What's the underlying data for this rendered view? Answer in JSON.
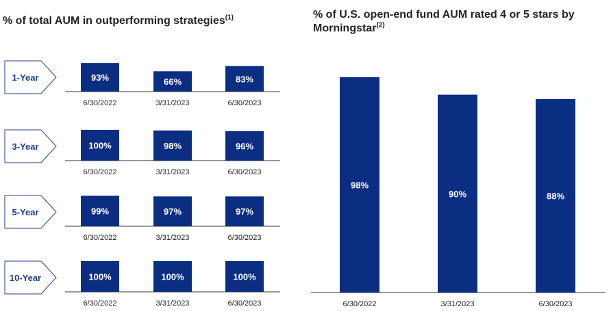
{
  "left_title": "% of total AUM in outperforming strategies",
  "left_title_note": "(1)",
  "right_title": "% of U.S. open-end fund AUM rated 4 or 5 stars by Morningstar",
  "right_title_note": "(2)",
  "colors": {
    "bar": "#0b2e83",
    "chevron_text": "#1f3e8a",
    "axis": "#333333"
  },
  "chart_data": [
    {
      "type": "bar",
      "title": "% of total AUM in outperforming strategies",
      "ylim": [
        0,
        100
      ],
      "panels": [
        {
          "period": "1-Year",
          "categories": [
            "6/30/2022",
            "3/31/2023",
            "6/30/2023"
          ],
          "values": [
            93,
            66,
            83
          ],
          "labels": [
            "93%",
            "66%",
            "83%"
          ]
        },
        {
          "period": "3-Year",
          "categories": [
            "6/30/2022",
            "3/31/2023",
            "6/30/2023"
          ],
          "values": [
            100,
            98,
            96
          ],
          "labels": [
            "100%",
            "98%",
            "96%"
          ]
        },
        {
          "period": "5-Year",
          "categories": [
            "6/30/2022",
            "3/31/2023",
            "6/30/2023"
          ],
          "values": [
            99,
            97,
            97
          ],
          "labels": [
            "99%",
            "97%",
            "97%"
          ]
        },
        {
          "period": "10-Year",
          "categories": [
            "6/30/2022",
            "3/31/2023",
            "6/30/2023"
          ],
          "values": [
            100,
            100,
            100
          ],
          "labels": [
            "100%",
            "100%",
            "100%"
          ]
        }
      ]
    },
    {
      "type": "bar",
      "title": "% of U.S. open-end fund AUM rated 4 or 5 stars by Morningstar",
      "ylim": [
        0,
        100
      ],
      "categories": [
        "6/30/2022",
        "3/31/2023",
        "6/30/2023"
      ],
      "values": [
        98,
        90,
        88
      ],
      "labels": [
        "98%",
        "90%",
        "88%"
      ]
    }
  ]
}
